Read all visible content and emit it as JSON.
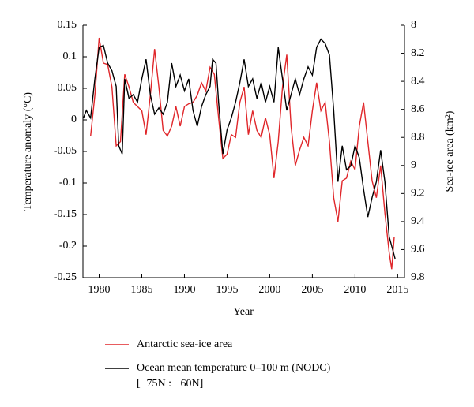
{
  "chart_data": {
    "type": "line",
    "xlabel": "Year",
    "ylabel": "Temperature anomaly (°C)",
    "y2label": "Sea-ice area (km²)",
    "xlim": [
      1978.1,
      2015.8
    ],
    "xticks": [
      1980,
      1985,
      1990,
      1995,
      2000,
      2005,
      2010,
      2015
    ],
    "ylim": [
      -0.25,
      0.15
    ],
    "yticks": [
      -0.25,
      -0.2,
      -0.15,
      -0.1,
      -0.05,
      0,
      0.05,
      0.1,
      0.15
    ],
    "y2lim": [
      8,
      9.8
    ],
    "y2ticks": [
      8,
      8.2,
      8.4,
      8.6,
      8.8,
      9,
      9.2,
      9.4,
      9.6,
      9.8
    ],
    "y2_inverted": true,
    "grid": false,
    "legend": "bottom",
    "series": [
      {
        "name": "Antarctic sea-ice area",
        "color": "#e0262a",
        "axis": "y2",
        "x": [
          1979,
          1979.5,
          1980,
          1980.5,
          1981,
          1981.5,
          1982,
          1982.5,
          1983,
          1983.5,
          1984,
          1984.5,
          1985,
          1985.5,
          1986,
          1986.5,
          1987,
          1987.5,
          1988,
          1988.5,
          1989,
          1989.5,
          1990,
          1990.5,
          1991,
          1991.5,
          1992,
          1992.5,
          1993,
          1993.5,
          1994,
          1994.5,
          1995,
          1995.5,
          1996,
          1996.5,
          1997,
          1997.5,
          1998,
          1998.5,
          1999,
          1999.5,
          2000,
          2000.5,
          2001,
          2001.5,
          2002,
          2002.5,
          2003,
          2003.5,
          2004,
          2004.5,
          2005,
          2005.5,
          2006,
          2006.5,
          2007,
          2007.5,
          2008,
          2008.5,
          2009,
          2009.5,
          2010,
          2010.5,
          2011,
          2011.5,
          2012,
          2012.5,
          2013,
          2013.5,
          2014,
          2014.3,
          2014.6
        ],
        "values": [
          8.79,
          8.5,
          8.09,
          8.27,
          8.28,
          8.44,
          8.86,
          8.83,
          8.35,
          8.44,
          8.55,
          8.58,
          8.61,
          8.78,
          8.5,
          8.17,
          8.44,
          8.75,
          8.79,
          8.72,
          8.58,
          8.72,
          8.58,
          8.56,
          8.55,
          8.5,
          8.41,
          8.47,
          8.3,
          8.35,
          8.66,
          8.95,
          8.92,
          8.78,
          8.8,
          8.55,
          8.44,
          8.78,
          8.61,
          8.75,
          8.8,
          8.66,
          8.78,
          9.09,
          8.83,
          8.44,
          8.21,
          8.72,
          9.0,
          8.89,
          8.8,
          8.86,
          8.61,
          8.41,
          8.61,
          8.55,
          8.83,
          9.23,
          9.4,
          9.11,
          9.09,
          8.97,
          9.03,
          8.72,
          8.55,
          8.83,
          9.11,
          9.23,
          9.0,
          9.34,
          9.62,
          9.74,
          9.51
        ]
      },
      {
        "name": "Ocean mean temperature 0–100 m (NODC)",
        "legend_note": "[−75N : −60N]",
        "color": "#000000",
        "axis": "y",
        "x": [
          1978.15,
          1978.5,
          1979,
          1979.5,
          1980,
          1980.5,
          1981,
          1981.5,
          1982,
          1982.3,
          1982.7,
          1983,
          1983.5,
          1984,
          1984.5,
          1985,
          1985.5,
          1986,
          1986.5,
          1987,
          1987.5,
          1988,
          1988.5,
          1989,
          1989.5,
          1990,
          1990.5,
          1991,
          1991.5,
          1992,
          1992.5,
          1993,
          1993.3,
          1993.7,
          1994,
          1994.5,
          1995,
          1995.5,
          1996,
          1996.5,
          1997,
          1997.5,
          1998,
          1998.5,
          1999,
          1999.5,
          2000,
          2000.5,
          2001,
          2001.5,
          2002,
          2002.5,
          2003,
          2003.5,
          2004,
          2004.5,
          2005,
          2005.5,
          2006,
          2006.5,
          2007,
          2007.5,
          2008,
          2008.5,
          2009,
          2009.5,
          2010,
          2010.5,
          2011,
          2011.5,
          2012,
          2012.5,
          2013,
          2013.5,
          2014,
          2014.5,
          2014.7
        ],
        "values": [
          0.0025,
          0.015,
          0.003,
          0.065,
          0.115,
          0.118,
          0.09,
          0.078,
          0.053,
          -0.041,
          -0.054,
          0.065,
          0.034,
          0.04,
          0.028,
          0.065,
          0.096,
          0.04,
          0.009,
          0.019,
          0.009,
          0.028,
          0.09,
          0.053,
          0.071,
          0.046,
          0.065,
          0.015,
          -0.01,
          0.021,
          0.04,
          0.053,
          0.096,
          0.09,
          0.028,
          -0.054,
          -0.016,
          0.003,
          0.028,
          0.059,
          0.096,
          0.053,
          0.065,
          0.034,
          0.059,
          0.028,
          0.053,
          0.028,
          0.115,
          0.065,
          0.015,
          0.04,
          0.065,
          0.04,
          0.065,
          0.084,
          0.071,
          0.115,
          0.128,
          0.121,
          0.103,
          0.015,
          -0.098,
          -0.041,
          -0.079,
          -0.073,
          -0.041,
          -0.06,
          -0.11,
          -0.154,
          -0.123,
          -0.098,
          -0.048,
          -0.098,
          -0.185,
          -0.21,
          -0.22
        ]
      }
    ]
  }
}
